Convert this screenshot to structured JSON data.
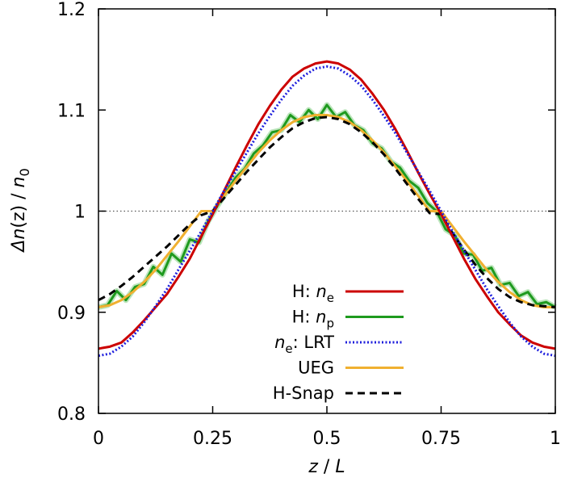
{
  "chart_data": {
    "type": "line",
    "title": "",
    "xlabel": {
      "var": "z",
      "rest": " / ",
      "var2": "L"
    },
    "ylabel": {
      "delta": "Δ",
      "var": "n",
      "mid": "(z) / ",
      "var2": "n",
      "sub": "0"
    },
    "xlim": [
      0,
      1
    ],
    "ylim": [
      0.8,
      1.2
    ],
    "xticks": [
      0,
      0.25,
      0.5,
      0.75,
      1
    ],
    "xtick_labels": [
      "0",
      "0.25",
      "0.5",
      "0.75",
      "1"
    ],
    "yticks": [
      0.8,
      0.9,
      1.0,
      1.1,
      1.2
    ],
    "ytick_labels": [
      "0.8",
      "0.9",
      "1",
      "1.1",
      "1.2"
    ],
    "reference_line": {
      "y": 1.0,
      "style": "dotted",
      "color": "#555555"
    },
    "legend_position": "bottom-right",
    "series": [
      {
        "key": "h_ne",
        "legend": {
          "prefix": "H: ",
          "var": "n",
          "sub": "e",
          "suffix": ""
        },
        "color": "#cc0000",
        "style": "solid",
        "x": [
          0,
          0.025,
          0.05,
          0.075,
          0.1,
          0.125,
          0.15,
          0.175,
          0.2,
          0.225,
          0.25,
          0.275,
          0.3,
          0.325,
          0.35,
          0.375,
          0.4,
          0.425,
          0.45,
          0.475,
          0.5,
          0.525,
          0.55,
          0.575,
          0.6,
          0.625,
          0.65,
          0.675,
          0.7,
          0.725,
          0.75,
          0.775,
          0.8,
          0.825,
          0.85,
          0.875,
          0.9,
          0.925,
          0.95,
          0.975,
          1
        ],
        "y": [
          0.864,
          0.866,
          0.87,
          0.88,
          0.892,
          0.905,
          0.918,
          0.935,
          0.953,
          0.975,
          0.997,
          1.02,
          1.043,
          1.065,
          1.086,
          1.104,
          1.12,
          1.133,
          1.141,
          1.146,
          1.148,
          1.146,
          1.14,
          1.13,
          1.116,
          1.1,
          1.081,
          1.06,
          1.038,
          1.017,
          0.997,
          0.975,
          0.953,
          0.933,
          0.916,
          0.9,
          0.888,
          0.877,
          0.87,
          0.866,
          0.864
        ]
      },
      {
        "key": "h_np",
        "legend": {
          "prefix": "H: ",
          "var": "n",
          "sub": "p",
          "suffix": ""
        },
        "color": "#1e9a1e",
        "style": "solid",
        "x": [
          0,
          0.02,
          0.04,
          0.06,
          0.08,
          0.1,
          0.12,
          0.14,
          0.16,
          0.18,
          0.2,
          0.22,
          0.24,
          0.26,
          0.28,
          0.3,
          0.32,
          0.34,
          0.36,
          0.38,
          0.4,
          0.42,
          0.44,
          0.46,
          0.48,
          0.5,
          0.52,
          0.54,
          0.56,
          0.58,
          0.6,
          0.62,
          0.64,
          0.66,
          0.68,
          0.7,
          0.72,
          0.74,
          0.76,
          0.78,
          0.8,
          0.82,
          0.84,
          0.86,
          0.88,
          0.9,
          0.92,
          0.94,
          0.96,
          0.98,
          1
        ],
        "y": [
          0.905,
          0.907,
          0.921,
          0.912,
          0.925,
          0.928,
          0.945,
          0.937,
          0.958,
          0.95,
          0.972,
          0.969,
          0.99,
          1.005,
          1.019,
          1.033,
          1.042,
          1.057,
          1.065,
          1.078,
          1.08,
          1.095,
          1.088,
          1.1,
          1.091,
          1.105,
          1.093,
          1.098,
          1.085,
          1.08,
          1.067,
          1.062,
          1.049,
          1.043,
          1.03,
          1.023,
          1.008,
          1.0,
          0.982,
          0.976,
          0.958,
          0.957,
          0.941,
          0.944,
          0.927,
          0.929,
          0.916,
          0.92,
          0.908,
          0.91,
          0.905
        ]
      },
      {
        "key": "ne_lrt",
        "legend": {
          "prefix": "",
          "var": "n",
          "sub": "e",
          "suffix": ": LRT"
        },
        "color": "#1f1fdd",
        "style": "dotted",
        "x": [
          0,
          0.025,
          0.05,
          0.075,
          0.1,
          0.125,
          0.15,
          0.175,
          0.2,
          0.225,
          0.25,
          0.275,
          0.3,
          0.325,
          0.35,
          0.375,
          0.4,
          0.425,
          0.45,
          0.475,
          0.5,
          0.525,
          0.55,
          0.575,
          0.6,
          0.625,
          0.65,
          0.675,
          0.7,
          0.725,
          0.75,
          0.775,
          0.8,
          0.825,
          0.85,
          0.875,
          0.9,
          0.925,
          0.95,
          0.975,
          1
        ],
        "y": [
          0.857,
          0.859,
          0.866,
          0.876,
          0.89,
          0.906,
          0.923,
          0.942,
          0.961,
          0.98,
          1.0,
          1.02,
          1.039,
          1.058,
          1.077,
          1.094,
          1.11,
          1.124,
          1.134,
          1.141,
          1.143,
          1.141,
          1.134,
          1.124,
          1.11,
          1.094,
          1.077,
          1.058,
          1.039,
          1.02,
          1.0,
          0.98,
          0.961,
          0.942,
          0.923,
          0.906,
          0.89,
          0.876,
          0.866,
          0.859,
          0.857
        ]
      },
      {
        "key": "ueg",
        "legend": {
          "prefix": "UEG",
          "var": "",
          "sub": "",
          "suffix": ""
        },
        "color": "#f0b030",
        "style": "solid",
        "x": [
          0,
          0.025,
          0.05,
          0.075,
          0.1,
          0.125,
          0.15,
          0.175,
          0.2,
          0.225,
          0.25,
          0.275,
          0.3,
          0.325,
          0.35,
          0.375,
          0.4,
          0.425,
          0.45,
          0.475,
          0.5,
          0.525,
          0.55,
          0.575,
          0.6,
          0.625,
          0.65,
          0.675,
          0.7,
          0.725,
          0.75,
          0.775,
          0.8,
          0.825,
          0.85,
          0.875,
          0.9,
          0.925,
          0.95,
          0.975,
          1
        ],
        "y": [
          0.905,
          0.907,
          0.912,
          0.92,
          0.93,
          0.942,
          0.956,
          0.97,
          0.985,
          1.0,
          1.0,
          1.015,
          1.03,
          1.044,
          1.058,
          1.07,
          1.08,
          1.088,
          1.093,
          1.095,
          1.095,
          1.093,
          1.088,
          1.08,
          1.07,
          1.058,
          1.044,
          1.03,
          1.015,
          1.0,
          1.0,
          0.985,
          0.97,
          0.956,
          0.942,
          0.93,
          0.92,
          0.912,
          0.907,
          0.905,
          0.905
        ]
      },
      {
        "key": "h_snap",
        "legend": {
          "prefix": "H-Snap",
          "var": "",
          "sub": "",
          "suffix": ""
        },
        "color": "#000000",
        "style": "dashed",
        "x": [
          0,
          0.025,
          0.05,
          0.075,
          0.1,
          0.125,
          0.15,
          0.175,
          0.2,
          0.225,
          0.25,
          0.275,
          0.3,
          0.325,
          0.35,
          0.375,
          0.4,
          0.425,
          0.45,
          0.475,
          0.5,
          0.525,
          0.55,
          0.575,
          0.6,
          0.625,
          0.65,
          0.675,
          0.7,
          0.725,
          0.75,
          0.775,
          0.8,
          0.825,
          0.85,
          0.875,
          0.9,
          0.925,
          0.95,
          0.975,
          1
        ],
        "y": [
          0.912,
          0.918,
          0.926,
          0.935,
          0.945,
          0.955,
          0.965,
          0.976,
          0.987,
          0.996,
          1.0,
          1.013,
          1.026,
          1.039,
          1.051,
          1.063,
          1.073,
          1.082,
          1.088,
          1.092,
          1.093,
          1.091,
          1.086,
          1.078,
          1.068,
          1.056,
          1.042,
          1.027,
          1.012,
          0.998,
          0.997,
          0.978,
          0.962,
          0.947,
          0.934,
          0.923,
          0.915,
          0.91,
          0.907,
          0.906,
          0.905
        ]
      }
    ]
  }
}
